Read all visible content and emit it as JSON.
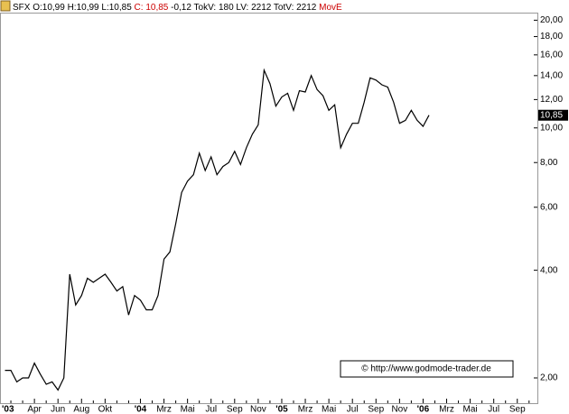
{
  "chart_data": {
    "type": "line",
    "header_text": "SFX O:10,99 H:10,99 L:10,85",
    "header_close": "C: 10,85",
    "header_rest": "-0,12 TokV: 180 LV: 2212 TotV: 2212",
    "header_indicator": "MovE",
    "watermark": "© http://www.godmode-trader.de",
    "log_scale": true,
    "color": "#000000",
    "ylim": [
      1.7,
      21
    ],
    "yticks": [
      {
        "value": 2,
        "label": "2,00"
      },
      {
        "value": 4,
        "label": "4,00"
      },
      {
        "value": 6,
        "label": "6,00"
      },
      {
        "value": 8,
        "label": "8,00"
      },
      {
        "value": 10,
        "label": "10,00"
      },
      {
        "value": 12,
        "label": "12,00"
      },
      {
        "value": 14,
        "label": "14,00"
      },
      {
        "value": 16,
        "label": "16,00"
      },
      {
        "value": 18,
        "label": "18,00"
      },
      {
        "value": 20,
        "label": "20,00"
      }
    ],
    "last_label": {
      "value": 10.85,
      "label": "10,85"
    },
    "categories": [
      "'03",
      null,
      null,
      null,
      null,
      null,
      "Apr",
      null,
      null,
      null,
      "Jun",
      null,
      null,
      null,
      "Aug",
      null,
      null,
      null,
      "Okt",
      null,
      null,
      null,
      null,
      null,
      "'04",
      null,
      null,
      null,
      "Mrz",
      null,
      null,
      null,
      "Mai",
      null,
      null,
      null,
      "Jul",
      null,
      null,
      null,
      "Sep",
      null,
      null,
      null,
      "Nov",
      null,
      null,
      null,
      "'05",
      null,
      null,
      null,
      "Mrz",
      null,
      null,
      null,
      "Mai",
      null,
      null,
      null,
      "Jul",
      null,
      null,
      null,
      "Sep",
      null,
      null,
      null,
      "Nov",
      null,
      null,
      null,
      "'06",
      null,
      null,
      null,
      "Mrz",
      null,
      null,
      null,
      "Mai",
      null,
      null,
      null,
      "Jul",
      null,
      null,
      null,
      "Sep",
      null,
      null
    ],
    "values": [
      null,
      2.1,
      2.1,
      1.95,
      2.0,
      2.0,
      2.2,
      2.05,
      1.92,
      1.95,
      1.85,
      2.0,
      3.9,
      3.2,
      3.4,
      3.8,
      3.7,
      3.8,
      3.9,
      3.7,
      3.5,
      3.6,
      3.0,
      3.4,
      3.3,
      3.1,
      3.1,
      3.4,
      4.3,
      4.5,
      5.4,
      6.6,
      7.1,
      7.4,
      8.5,
      7.6,
      8.3,
      7.4,
      7.8,
      8.0,
      8.6,
      7.9,
      8.8,
      9.6,
      10.2,
      14.5,
      13.3,
      11.5,
      12.2,
      12.5,
      11.2,
      12.7,
      12.6,
      14.0,
      12.8,
      12.3,
      11.2,
      11.6,
      8.8,
      9.6,
      10.3,
      10.3,
      11.8,
      13.8,
      13.6,
      13.2,
      13.0,
      11.8,
      10.3,
      10.5,
      11.2,
      10.5,
      10.1,
      10.85,
      null,
      null,
      null,
      null,
      null,
      null,
      null,
      null,
      null,
      null,
      null,
      null,
      null,
      null,
      null,
      null,
      null
    ]
  }
}
